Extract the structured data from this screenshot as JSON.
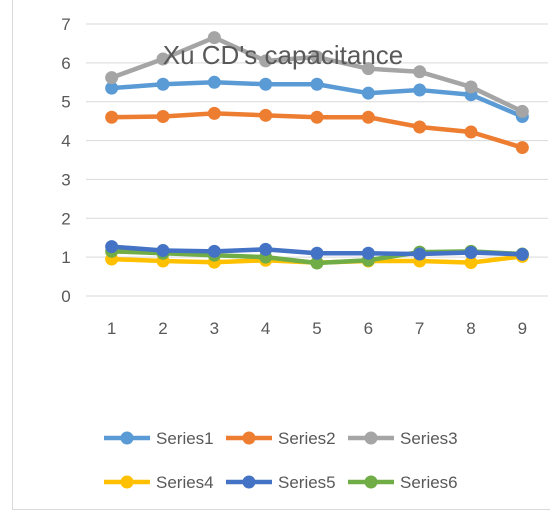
{
  "chart_data": {
    "type": "line",
    "title": "Xu CD's capacitance",
    "xlabel": "",
    "ylabel": "",
    "categories": [
      "1",
      "2",
      "3",
      "4",
      "5",
      "6",
      "7",
      "8",
      "9"
    ],
    "y_ticks": [
      "0",
      "1",
      "2",
      "3",
      "4",
      "5",
      "6",
      "7"
    ],
    "ylim": [
      0,
      7
    ],
    "grid": true,
    "legend_position": "bottom",
    "series": [
      {
        "name": "Series1",
        "color": "#5b9bd5",
        "values": [
          5.35,
          5.45,
          5.5,
          5.45,
          5.45,
          5.22,
          5.3,
          5.18,
          4.62
        ]
      },
      {
        "name": "Series2",
        "color": "#ed7d31",
        "values": [
          4.6,
          4.62,
          4.7,
          4.65,
          4.6,
          4.6,
          4.35,
          4.22,
          3.82
        ]
      },
      {
        "name": "Series3",
        "color": "#a5a5a5",
        "values": [
          5.62,
          6.1,
          6.65,
          6.05,
          6.15,
          5.85,
          5.77,
          5.38,
          4.75
        ]
      },
      {
        "name": "Series4",
        "color": "#ffc000",
        "values": [
          0.95,
          0.9,
          0.87,
          0.92,
          0.86,
          0.9,
          0.9,
          0.86,
          1.02
        ]
      },
      {
        "name": "Series5",
        "color": "#4472c4",
        "values": [
          1.27,
          1.17,
          1.15,
          1.2,
          1.1,
          1.1,
          1.08,
          1.12,
          1.07
        ]
      },
      {
        "name": "Series6",
        "color": "#70ad47",
        "values": [
          1.15,
          1.1,
          1.05,
          1.0,
          0.85,
          0.92,
          1.13,
          1.15,
          1.08
        ]
      }
    ]
  }
}
